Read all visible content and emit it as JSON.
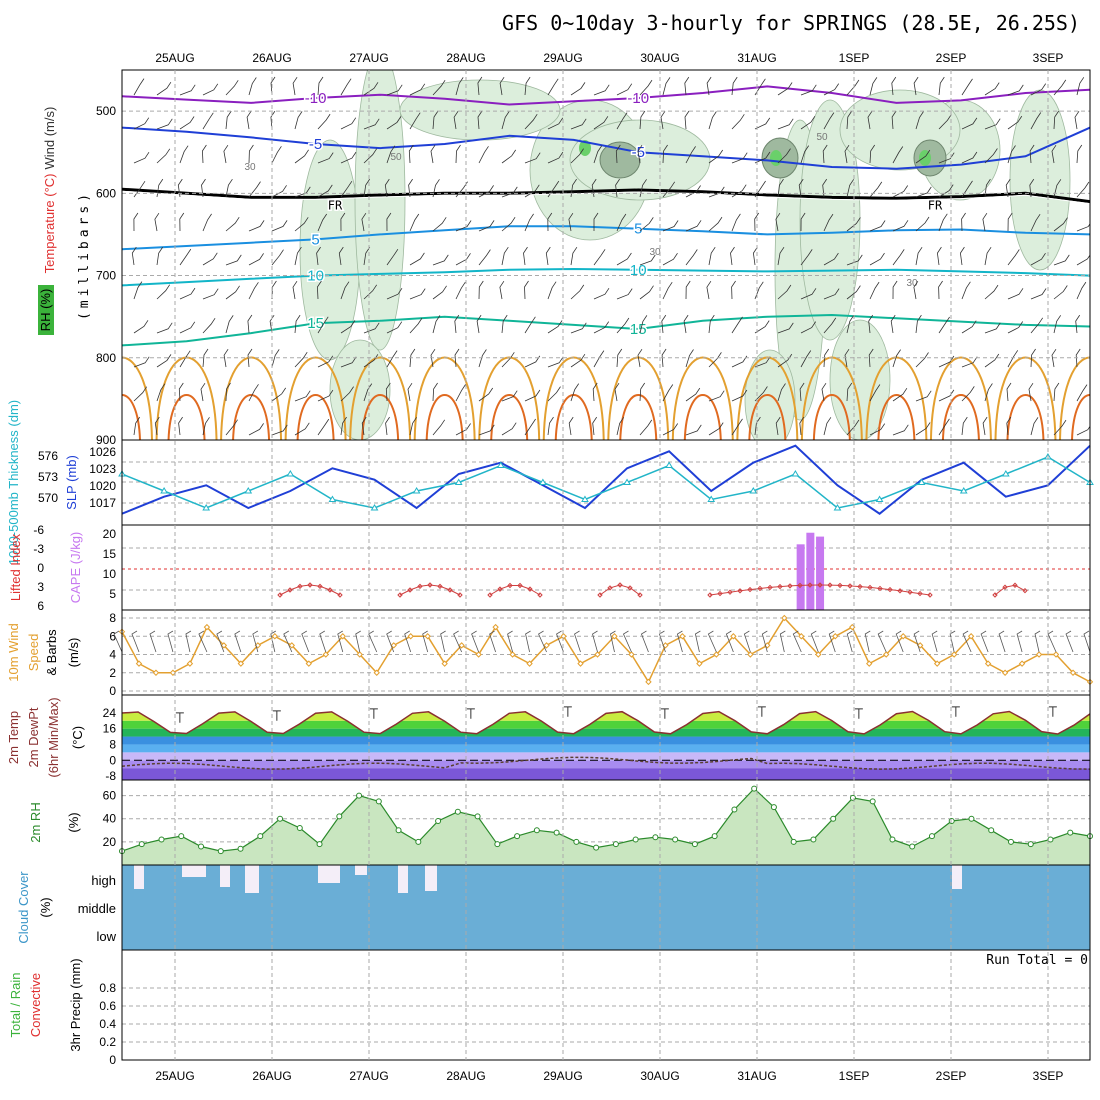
{
  "title": "GFS 0~10day 3-hourly for SPRINGS (28.5E, 26.25S)",
  "chart_data": {
    "type": "meteogram",
    "dates": [
      "25AUG",
      "26AUG",
      "27AUG",
      "28AUG",
      "29AUG",
      "30AUG",
      "31AUG",
      "1SEP",
      "2SEP",
      "3SEP"
    ],
    "colors": {
      "grid": "#aaaaaa",
      "frame": "#000000"
    },
    "panels": {
      "upper_air": {
        "axis_label": "(millibars)",
        "legend": {
          "wind": "Wind (m/s)",
          "temperature": "Temperature (°C)",
          "rh": "RH (%)"
        },
        "yticks": [
          500,
          600,
          700,
          800,
          900
        ],
        "ylim": [
          450,
          900
        ],
        "rh_contours": [
          "30",
          "50"
        ],
        "freezing_label": "FR",
        "isotherms": [
          {
            "label": "-10",
            "color": "#8a1fbf",
            "levels": [
              482,
              486,
              490,
              484,
              480,
              485,
              492,
              488,
              484,
              478,
              470,
              478,
              490,
              487,
              478,
              474
            ]
          },
          {
            "label": "-5",
            "color": "#1f3fd6",
            "levels": [
              520,
              525,
              532,
              540,
              545,
              540,
              530,
              535,
              550,
              555,
              560,
              568,
              570,
              565,
              555,
              520
            ]
          },
          {
            "label": "5",
            "color": "#1a8fe0",
            "levels": [
              668,
              664,
              660,
              656,
              650,
              645,
              640,
              640,
              643,
              646,
              650,
              648,
              645,
              644,
              648,
              650
            ]
          },
          {
            "label": "10",
            "color": "#12b5c8",
            "levels": [
              712,
              708,
              704,
              700,
              698,
              696,
              693,
              692,
              693,
              694,
              695,
              694,
              693,
              695,
              697,
              700
            ]
          },
          {
            "label": "15",
            "color": "#10b598",
            "levels": [
              785,
              780,
              770,
              758,
              755,
              750,
              755,
              760,
              765,
              755,
              750,
              748,
              752,
              756,
              760,
              762
            ]
          }
        ],
        "freezing_levels": [
          595,
          600,
          605,
          605,
          602,
          600,
          600,
          598,
          596,
          598,
          602,
          605,
          606,
          604,
          600,
          610
        ]
      },
      "slp_thickness": {
        "labels": {
          "thickness": "1000-500mb Thickness (dm)",
          "slp": "SLP (mb)"
        },
        "yticks_thickness": [
          "576",
          "573",
          "570"
        ],
        "yticks_slp": [
          "1026",
          "1023",
          "1020",
          "1017"
        ],
        "slp": [
          1015,
          1018,
          1020,
          1016,
          1019,
          1023,
          1021,
          1016,
          1022,
          1024,
          1020,
          1016,
          1023,
          1026,
          1019,
          1024,
          1027,
          1020,
          1015,
          1021,
          1024,
          1018,
          1020,
          1027
        ],
        "thickness": [
          574,
          572,
          570,
          572,
          574,
          571,
          570,
          572,
          573,
          575,
          573,
          571,
          573,
          575,
          571,
          572,
          574,
          570,
          571,
          573,
          572,
          574,
          576,
          573
        ]
      },
      "stability": {
        "labels": {
          "li": "Lifted Index",
          "cape": "CAPE (J/kg)"
        },
        "yticks_li": [
          "-6",
          "-3",
          "0",
          "3",
          "6"
        ],
        "yticks_cape": [
          "20",
          "15",
          "10",
          "5"
        ],
        "cape_bars": [
          {
            "day": 6.45,
            "value": 17
          },
          {
            "day": 6.55,
            "value": 20
          },
          {
            "day": 6.65,
            "value": 19
          }
        ]
      },
      "wind10m": {
        "labels": {
          "wind": "10m Wind",
          "speed": "Speed",
          "barbs": "& Barbs",
          "unit": "(m/s)"
        },
        "yticks": [
          "8",
          "6",
          "4",
          "2",
          "0"
        ],
        "ylim": [
          0,
          8
        ],
        "speeds": [
          6.5,
          3,
          2,
          2,
          3,
          7,
          5,
          3,
          5,
          6,
          5,
          3,
          4,
          6,
          4,
          2,
          5,
          6,
          6,
          3,
          5,
          4,
          7,
          4,
          3,
          5,
          6,
          3,
          4,
          6,
          4,
          1,
          5,
          6,
          3,
          4,
          6,
          4,
          5,
          8,
          6,
          4,
          6,
          7,
          3,
          4,
          6,
          5,
          3,
          4,
          6,
          3,
          2,
          3,
          4,
          4,
          2,
          1
        ]
      },
      "temperature": {
        "labels": {
          "temp": "2m Temp",
          "dewpt": "2m DewPt",
          "note": "(6hr Min/Max)",
          "unit": "(°C)"
        },
        "yticks": [
          "24",
          "16",
          "8",
          "0",
          "-8"
        ],
        "ylim": [
          -10,
          30
        ],
        "max": [
          24,
          25,
          26,
          26,
          27,
          26,
          27,
          26,
          27,
          27,
          26
        ],
        "min": [
          13,
          13,
          12,
          13,
          12,
          12,
          12,
          13,
          12,
          13,
          14
        ]
      },
      "rh2m": {
        "labels": {
          "rh": "2m RH",
          "unit": "(%)"
        },
        "yticks": [
          "60",
          "40",
          "20"
        ],
        "ylim": [
          0,
          70
        ],
        "values": [
          12,
          18,
          22,
          25,
          16,
          12,
          14,
          25,
          40,
          32,
          18,
          42,
          60,
          55,
          30,
          20,
          38,
          46,
          42,
          18,
          25,
          30,
          28,
          20,
          15,
          18,
          22,
          24,
          22,
          18,
          25,
          48,
          66,
          50,
          20,
          22,
          40,
          58,
          55,
          22,
          16,
          25,
          38,
          40,
          30,
          20,
          18,
          22,
          28,
          25
        ]
      },
      "cloud": {
        "labels": {
          "title": "Cloud Cover",
          "unit": "(%)"
        },
        "ylevels": [
          "high",
          "middle",
          "low"
        ],
        "color": "#6aaed6"
      },
      "precip": {
        "labels": {
          "title": "3hr Precip (mm)",
          "total": "Total / Rain",
          "conv": "Convective",
          "run_total": "Run Total = 0"
        },
        "yticks": [
          "0.8",
          "0.6",
          "0.4",
          "0.2",
          "0"
        ],
        "ylim": [
          0,
          1
        ]
      }
    }
  }
}
